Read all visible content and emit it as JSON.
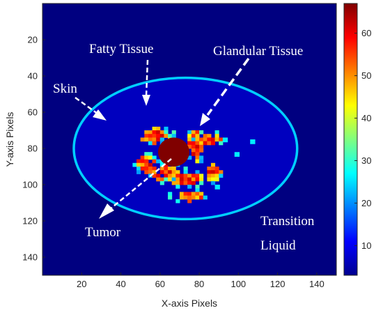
{
  "chart_data": {
    "type": "heatmap",
    "title": "",
    "xlabel": "X-axis Pixels",
    "ylabel": "Y-axis Pixels",
    "xlim": [
      0,
      150
    ],
    "ylim": [
      150,
      0
    ],
    "xticks": [
      20,
      40,
      60,
      80,
      100,
      120,
      140
    ],
    "yticks": [
      20,
      40,
      60,
      80,
      100,
      120,
      140
    ],
    "colormap": "jet",
    "colorbar": {
      "range": [
        3,
        67
      ],
      "ticks": [
        10,
        20,
        30,
        40,
        50,
        60
      ]
    },
    "values": {
      "background": 3,
      "fatty_tissue": 7,
      "skin": 24,
      "tumor": 67,
      "glandular_range": [
        35,
        62
      ]
    },
    "regions": {
      "breast": {
        "center": [
          73,
          80
        ],
        "radius_x": 57,
        "radius_y": 39
      },
      "tumor": {
        "center": [
          67,
          82
        ],
        "radius": 8
      }
    },
    "annotations": [
      "Fatty Tissue",
      "Glandular Tissue",
      "Skin",
      "Tumor",
      "Transition",
      "Liquid"
    ]
  }
}
